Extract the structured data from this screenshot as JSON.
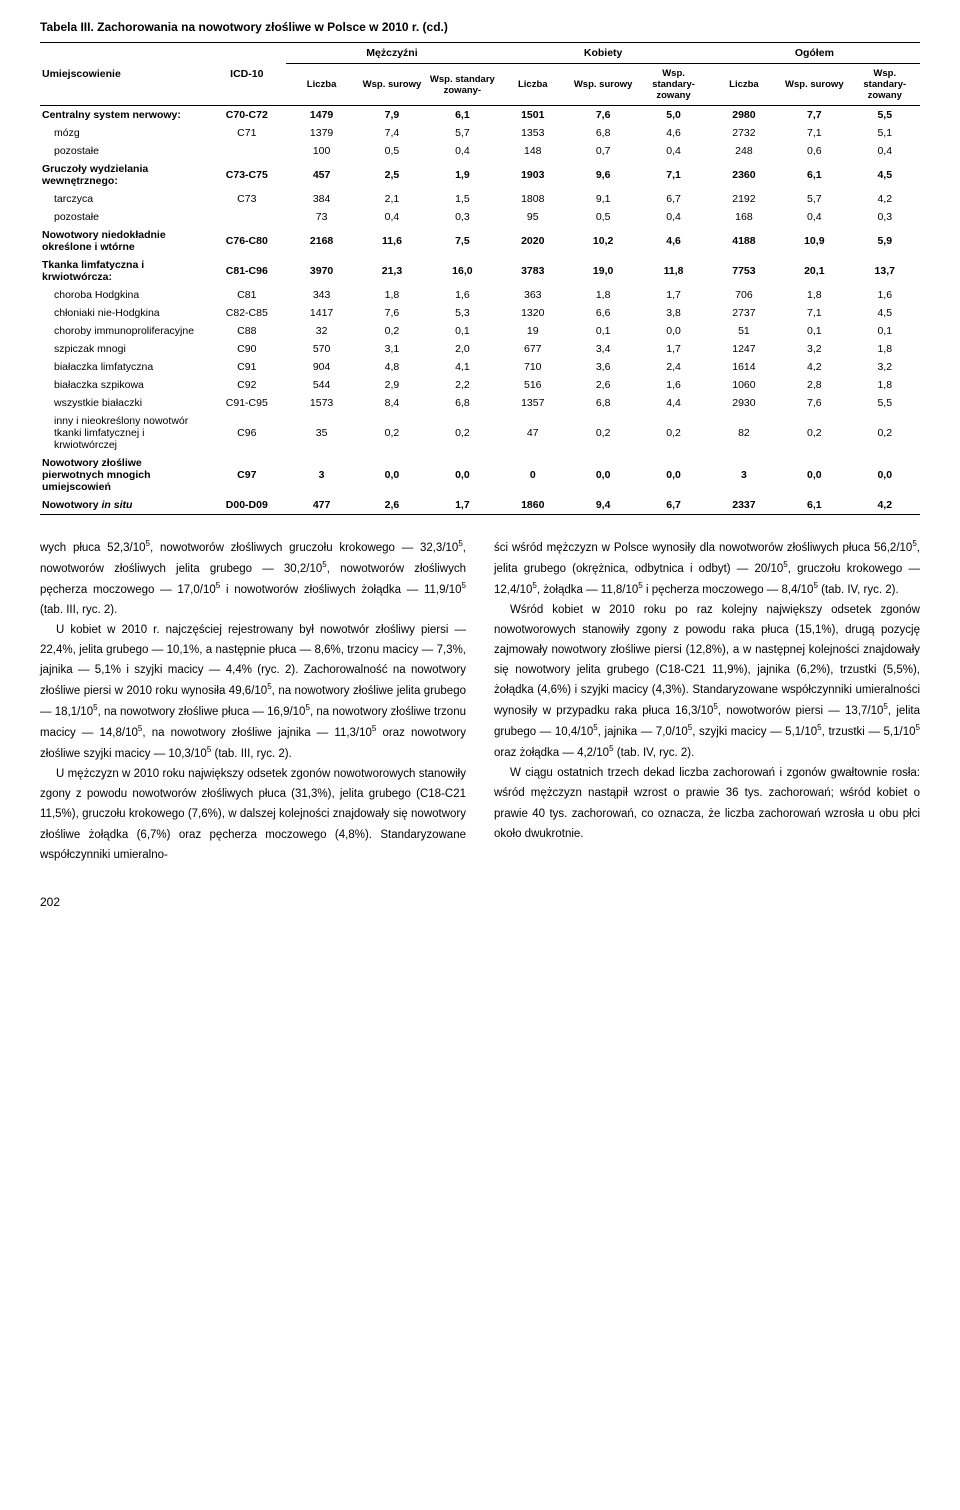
{
  "tableTitle": "Tabela III. Zachorowania na nowotwory złośliwe w Polsce w 2010 r. (cd.)",
  "head": {
    "c1": "Umiejscowienie",
    "c2": "ICD-10",
    "g1": "Mężczyźni",
    "g2": "Kobiety",
    "g3": "Ogółem",
    "s1": "Liczba",
    "s2": "Wsp. surowy",
    "s3": "Wsp. standary zowany-",
    "s4": "Liczba",
    "s5": "Wsp. surowy",
    "s6": "Wsp. standary- zowany",
    "s7": "Liczba",
    "s8": "Wsp. surowy",
    "s9": "Wsp. standary- zowany"
  },
  "rows": [
    {
      "bold": true,
      "loc": "Centralny system nerwowy:",
      "icd": "C70-C72",
      "m_n": "1479",
      "m_s": "7,9",
      "m_st": "6,1",
      "k_n": "1501",
      "k_s": "7,6",
      "k_st": "5,0",
      "o_n": "2980",
      "o_s": "7,7",
      "o_st": "5,5"
    },
    {
      "indent": true,
      "loc": "mózg",
      "icd": "C71",
      "m_n": "1379",
      "m_s": "7,4",
      "m_st": "5,7",
      "k_n": "1353",
      "k_s": "6,8",
      "k_st": "4,6",
      "o_n": "2732",
      "o_s": "7,1",
      "o_st": "5,1"
    },
    {
      "indent": true,
      "loc": "pozostałe",
      "icd": "",
      "m_n": "100",
      "m_s": "0,5",
      "m_st": "0,4",
      "k_n": "148",
      "k_s": "0,7",
      "k_st": "0,4",
      "o_n": "248",
      "o_s": "0,6",
      "o_st": "0,4"
    },
    {
      "bold": true,
      "loc": "Gruczoły wydzielania wewnętrznego:",
      "icd": "C73-C75",
      "m_n": "457",
      "m_s": "2,5",
      "m_st": "1,9",
      "k_n": "1903",
      "k_s": "9,6",
      "k_st": "7,1",
      "o_n": "2360",
      "o_s": "6,1",
      "o_st": "4,5"
    },
    {
      "indent": true,
      "loc": "tarczyca",
      "icd": "C73",
      "m_n": "384",
      "m_s": "2,1",
      "m_st": "1,5",
      "k_n": "1808",
      "k_s": "9,1",
      "k_st": "6,7",
      "o_n": "2192",
      "o_s": "5,7",
      "o_st": "4,2"
    },
    {
      "indent": true,
      "loc": "pozostałe",
      "icd": "",
      "m_n": "73",
      "m_s": "0,4",
      "m_st": "0,3",
      "k_n": "95",
      "k_s": "0,5",
      "k_st": "0,4",
      "o_n": "168",
      "o_s": "0,4",
      "o_st": "0,3"
    },
    {
      "bold": true,
      "loc": "Nowotwory niedokładnie określone i wtórne",
      "icd": "C76-C80",
      "m_n": "2168",
      "m_s": "11,6",
      "m_st": "7,5",
      "k_n": "2020",
      "k_s": "10,2",
      "k_st": "4,6",
      "o_n": "4188",
      "o_s": "10,9",
      "o_st": "5,9"
    },
    {
      "bold": true,
      "loc": "Tkanka limfatyczna i krwiotwórcza:",
      "icd": "C81-C96",
      "m_n": "3970",
      "m_s": "21,3",
      "m_st": "16,0",
      "k_n": "3783",
      "k_s": "19,0",
      "k_st": "11,8",
      "o_n": "7753",
      "o_s": "20,1",
      "o_st": "13,7"
    },
    {
      "indent": true,
      "loc": "choroba Hodgkina",
      "icd": "C81",
      "m_n": "343",
      "m_s": "1,8",
      "m_st": "1,6",
      "k_n": "363",
      "k_s": "1,8",
      "k_st": "1,7",
      "o_n": "706",
      "o_s": "1,8",
      "o_st": "1,6"
    },
    {
      "indent": true,
      "loc": "chłoniaki nie-Hodgkina",
      "icd": "C82-C85",
      "m_n": "1417",
      "m_s": "7,6",
      "m_st": "5,3",
      "k_n": "1320",
      "k_s": "6,6",
      "k_st": "3,8",
      "o_n": "2737",
      "o_s": "7,1",
      "o_st": "4,5"
    },
    {
      "indent": true,
      "loc": "choroby immunoproliferacyjne",
      "icd": "C88",
      "m_n": "32",
      "m_s": "0,2",
      "m_st": "0,1",
      "k_n": "19",
      "k_s": "0,1",
      "k_st": "0,0",
      "o_n": "51",
      "o_s": "0,1",
      "o_st": "0,1"
    },
    {
      "indent": true,
      "loc": "szpiczak mnogi",
      "icd": "C90",
      "m_n": "570",
      "m_s": "3,1",
      "m_st": "2,0",
      "k_n": "677",
      "k_s": "3,4",
      "k_st": "1,7",
      "o_n": "1247",
      "o_s": "3,2",
      "o_st": "1,8"
    },
    {
      "indent": true,
      "loc": "białaczka limfatyczna",
      "icd": "C91",
      "m_n": "904",
      "m_s": "4,8",
      "m_st": "4,1",
      "k_n": "710",
      "k_s": "3,6",
      "k_st": "2,4",
      "o_n": "1614",
      "o_s": "4,2",
      "o_st": "3,2"
    },
    {
      "indent": true,
      "loc": "białaczka szpikowa",
      "icd": "C92",
      "m_n": "544",
      "m_s": "2,9",
      "m_st": "2,2",
      "k_n": "516",
      "k_s": "2,6",
      "k_st": "1,6",
      "o_n": "1060",
      "o_s": "2,8",
      "o_st": "1,8"
    },
    {
      "indent": true,
      "loc": "wszystkie białaczki",
      "icd": "C91-C95",
      "m_n": "1573",
      "m_s": "8,4",
      "m_st": "6,8",
      "k_n": "1357",
      "k_s": "6,8",
      "k_st": "4,4",
      "o_n": "2930",
      "o_s": "7,6",
      "o_st": "5,5"
    },
    {
      "indent": true,
      "loc": "inny i nieokreślony nowotwór tkanki limfatycznej i krwiotwórczej",
      "icd": "C96",
      "m_n": "35",
      "m_s": "0,2",
      "m_st": "0,2",
      "k_n": "47",
      "k_s": "0,2",
      "k_st": "0,2",
      "o_n": "82",
      "o_s": "0,2",
      "o_st": "0,2"
    },
    {
      "bold": true,
      "loc": "Nowotwory złośliwe pierwotnych mnogich umiejscowień",
      "icd": "C97",
      "m_n": "3",
      "m_s": "0,0",
      "m_st": "0,0",
      "k_n": "0",
      "k_s": "0,0",
      "k_st": "0,0",
      "o_n": "3",
      "o_s": "0,0",
      "o_st": "0,0"
    },
    {
      "bold": true,
      "last": true,
      "loc": "Nowotwory in situ",
      "icd": "D00-D09",
      "m_n": "477",
      "m_s": "2,6",
      "m_st": "1,7",
      "k_n": "1860",
      "k_s": "9,4",
      "k_st": "6,7",
      "o_n": "2337",
      "o_s": "6,1",
      "o_st": "4,2",
      "italic_part": "in situ"
    }
  ],
  "body": {
    "p1a": "wych płuca 52,3/10",
    "p1b": ", nowotworów złośliwych gruczołu krokowego — 32,3/10",
    "p1c": ", nowotworów złośliwych jelita grubego — 30,2/10",
    "p1d": ", nowotworów złośliwych pęcherza moczowego — 17,0/10",
    "p1e": " i nowotworów złośliwych żołądka — 11,9/10",
    "p1f": " (tab. III, ryc. 2).",
    "p2a": "U kobiet w 2010 r. najczęściej rejestrowany był nowotwór złośliwy piersi — 22,4%, jelita grubego — 10,1%, a następnie płuca — 8,6%, trzonu macicy — 7,3%, jajnika — 5,1% i szyjki macicy — 4,4% (ryc. 2). Zachorowalność na nowotwory złośliwe piersi w 2010 roku wynosiła 49,6/10",
    "p2b": ", na nowotwory złośliwe jelita grubego — 18,1/10",
    "p2c": ", na nowotwory złośliwe płuca — 16,9/10",
    "p2d": ", na nowotwory złośliwe trzonu macicy — 14,8/10",
    "p2e": ", na nowotwory złośliwe jajnika — 11,3/10",
    "p2f": " oraz nowotwory złośliwe szyjki macicy — 10,3/10",
    "p2g": " (tab. III, ryc. 2).",
    "p3a": "U mężczyzn w 2010 roku największy odsetek zgonów nowotworowych stanowiły zgony z powodu nowotworów złośliwych płuca (31,3%), jelita grubego (C18-C21 11,5%), gruczołu krokowego (7,6%), w dalszej kolejności znajdowały się nowotwory złośliwe żołądka (6,7%) oraz pęcherza moczowego (4,8%). Standaryzowane współczynniki umieralno-",
    "p4a": "ści wśród mężczyzn w Polsce wynosiły dla nowotworów złośliwych płuca 56,2/10",
    "p4b": ", jelita grubego (okrężnica, odbytnica i odbyt) — 20/10",
    "p4c": ", gruczołu krokowego — 12,4/10",
    "p4d": ", żołądka — 11,8/10",
    "p4e": " i pęcherza moczowego — 8,4/10",
    "p4f": " (tab. IV, ryc. 2).",
    "p5a": "Wśród kobiet w 2010 roku po raz kolejny największy odsetek zgonów nowotworowych stanowiły zgony z powodu raka płuca (15,1%), drugą pozycję zajmowały nowotwory złośliwe piersi (12,8%), a w następnej kolejności znajdowały się nowotwory jelita grubego (C18-C21 11,9%), jajnika (6,2%), trzustki (5,5%), żołądka (4,6%) i szyjki macicy (4,3%). Standaryzowane współczynniki umieralności wynosiły w przypadku raka płuca 16,3/10",
    "p5b": ", nowotworów piersi — 13,7/10",
    "p5c": ", jelita grubego — 10,4/10",
    "p5d": ", jajnika — 7,0/10",
    "p5e": ", szyjki macicy — 5,1/10",
    "p5f": ", trzustki — 5,1/10",
    "p5g": " oraz żołądka — 4,2/10",
    "p5h": " (tab. IV, ryc. 2).",
    "p6": "W ciągu ostatnich trzech dekad liczba zachorowań i zgonów gwałtownie rosła: wśród mężczyzn nastąpił wzrost o prawie 36 tys. zachorowań; wśród kobiet o prawie 40 tys. zachorowań, co oznacza, że liczba zachorowań wzrosła u obu płci około dwukrotnie."
  },
  "pageNum": "202",
  "sup5": "5"
}
